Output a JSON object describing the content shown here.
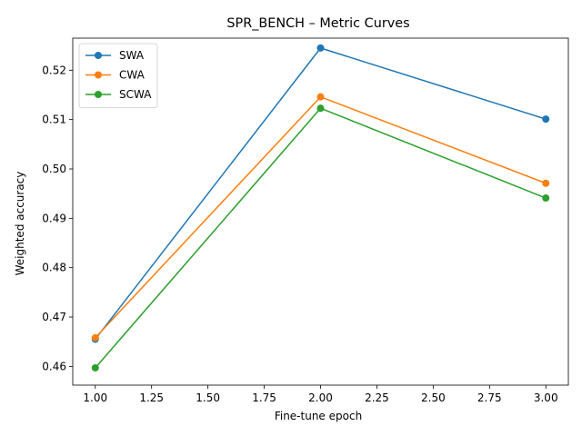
{
  "chart_data": {
    "type": "line",
    "title": "SPR_BENCH – Metric Curves",
    "xlabel": "Fine-tune epoch",
    "ylabel": "Weighted accuracy",
    "x": [
      1.0,
      2.0,
      3.0
    ],
    "xlim": [
      0.9,
      3.1
    ],
    "ylim": [
      0.4562,
      0.5265
    ],
    "xticks": [
      1.0,
      1.25,
      1.5,
      1.75,
      2.0,
      2.25,
      2.5,
      2.75,
      3.0
    ],
    "xtick_labels": [
      "1.00",
      "1.25",
      "1.50",
      "1.75",
      "2.00",
      "2.25",
      "2.50",
      "2.75",
      "3.00"
    ],
    "yticks": [
      0.46,
      0.47,
      0.48,
      0.49,
      0.5,
      0.51,
      0.52
    ],
    "ytick_labels": [
      "0.46",
      "0.47",
      "0.48",
      "0.49",
      "0.50",
      "0.51",
      "0.52"
    ],
    "grid": false,
    "legend_position": "top-left",
    "series": [
      {
        "name": "SWA",
        "color": "#1f77b4",
        "marker": "circle",
        "values": [
          0.4655,
          0.5245,
          0.5101
        ]
      },
      {
        "name": "CWA",
        "color": "#ff7f0e",
        "marker": "circle",
        "values": [
          0.4658,
          0.5146,
          0.4971
        ]
      },
      {
        "name": "SCWA",
        "color": "#2ca02c",
        "marker": "circle",
        "values": [
          0.4597,
          0.5123,
          0.4941
        ]
      }
    ]
  }
}
